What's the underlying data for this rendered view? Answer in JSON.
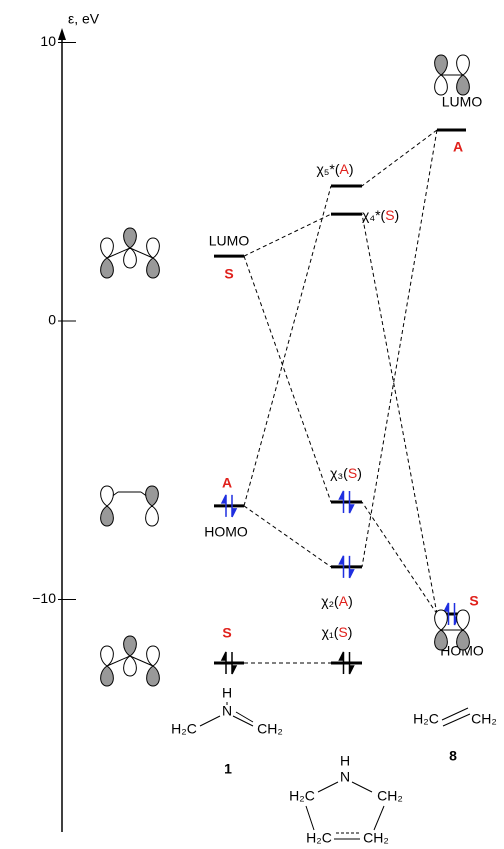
{
  "axis": {
    "label": "ε, eV",
    "ylim": [
      -18.35,
      10.45
    ],
    "ticks": [
      10,
      0,
      {
        "value": -10,
        "label": "−10"
      }
    ]
  },
  "levels": [
    {
      "column": 0,
      "energy": 2.33,
      "label": [
        "LUMO",
        "S"
      ]
    },
    {
      "column": 0,
      "energy": -6.64,
      "label": [
        "A",
        "HOMO"
      ],
      "electrons": "#1f2fe0"
    },
    {
      "column": 0,
      "energy": -12.28,
      "label": [
        "S"
      ],
      "electrons": "#000000"
    },
    {
      "column": 1,
      "energy": 4.85,
      "label": [
        "χ₅*(",
        "A",
        ")"
      ]
    },
    {
      "column": 1,
      "energy": 3.84,
      "label": [
        "χ₄*(",
        "S",
        ")"
      ]
    },
    {
      "column": 1,
      "energy": -6.5,
      "label": [
        "χ₃(",
        "S",
        ")"
      ],
      "electrons": "#1f2fe0"
    },
    {
      "column": 1,
      "energy": -8.83,
      "label": [
        "χ₂(",
        "A",
        ")"
      ],
      "electrons": "#1f2fe0"
    },
    {
      "column": 1,
      "energy": -12.28,
      "label": [
        "χ₁(",
        "S",
        ")"
      ],
      "electrons": "#000000"
    },
    {
      "column": 2,
      "energy": 6.86,
      "label": [
        "LUMO",
        "A"
      ]
    },
    {
      "column": 2,
      "energy": -10.52,
      "label": [
        "S",
        "HOMO"
      ],
      "electrons": "#1f2fe0"
    }
  ],
  "connections": [
    [
      0,
      4
    ],
    [
      0,
      5
    ],
    [
      1,
      3
    ],
    [
      1,
      6
    ],
    [
      8,
      3
    ],
    [
      8,
      6
    ],
    [
      9,
      4
    ],
    [
      9,
      5
    ],
    [
      2,
      7
    ]
  ],
  "molecules": [
    {
      "atoms": [
        "H",
        "N",
        "H₂C",
        "CH₂"
      ],
      "number": "1"
    },
    {
      "atoms": [
        "H",
        "N",
        "H₂C",
        "CH₂",
        "H₂C",
        "CH₂"
      ]
    },
    {
      "atoms": [
        "H₂C",
        "CH₂"
      ],
      "number": "8"
    }
  ]
}
